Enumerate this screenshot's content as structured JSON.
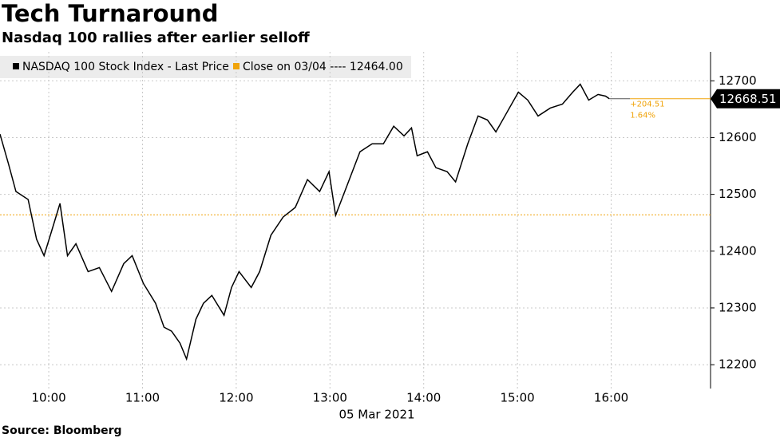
{
  "chart_data": {
    "type": "line",
    "title": "Tech Turnaround",
    "subtitle": "Nasdaq 100 rallies after earlier selloff",
    "source": "Source: Bloomberg",
    "x_label": "05 Mar 2021",
    "series": [
      {
        "name": "NASDAQ 100 Stock Index - Last Price",
        "color": "#000000",
        "x": [
          9.48,
          9.57,
          9.65,
          9.78,
          9.87,
          9.95,
          10.03,
          10.12,
          10.2,
          10.29,
          10.42,
          10.54,
          10.67,
          10.8,
          10.89,
          11.01,
          11.14,
          11.23,
          11.31,
          11.4,
          11.47,
          11.57,
          11.65,
          11.74,
          11.87,
          11.95,
          12.03,
          12.16,
          12.25,
          12.37,
          12.5,
          12.63,
          12.76,
          12.89,
          12.99,
          13.06,
          13.19,
          13.32,
          13.45,
          13.57,
          13.68,
          13.79,
          13.87,
          13.93,
          14.04,
          14.13,
          14.25,
          14.34,
          14.47,
          14.58,
          14.68,
          14.77,
          14.89,
          15.01,
          15.11,
          15.22,
          15.35,
          15.48,
          15.59,
          15.67,
          15.76,
          15.86,
          15.94,
          15.98
        ],
        "values": [
          12606,
          12554,
          12505,
          12491,
          12421,
          12392,
          12435,
          12484,
          12392,
          12413,
          12364,
          12371,
          12329,
          12378,
          12392,
          12343,
          12308,
          12266,
          12259,
          12238,
          12210,
          12280,
          12308,
          12322,
          12287,
          12336,
          12364,
          12336,
          12364,
          12428,
          12460,
          12477,
          12526,
          12505,
          12540,
          12463,
          12519,
          12575,
          12589,
          12589,
          12620,
          12603,
          12617,
          12568,
          12575,
          12547,
          12540,
          12522,
          12589,
          12638,
          12631,
          12610,
          12645,
          12680,
          12666,
          12638,
          12652,
          12659,
          12680,
          12694,
          12666,
          12676,
          12673,
          12668.51
        ]
      }
    ],
    "reference_line": {
      "name": "Close on 03/04 ---- 12464.00",
      "value": 12464,
      "color": "#f0a30a"
    },
    "annotations": [
      "+204.51",
      "1.64%"
    ],
    "xlim": [
      9.48,
      17.06
    ],
    "ylim": [
      12158,
      12751
    ],
    "xticks": [
      {
        "value": 10,
        "label": "10:00"
      },
      {
        "value": 11,
        "label": "11:00"
      },
      {
        "value": 12,
        "label": "12:00"
      },
      {
        "value": 13,
        "label": "13:00"
      },
      {
        "value": 14,
        "label": "14:00"
      },
      {
        "value": 15,
        "label": "15:00"
      },
      {
        "value": 16,
        "label": "16:00"
      }
    ],
    "yticks": [
      12200,
      12300,
      12400,
      12500,
      12600,
      12700
    ],
    "grid": true
  }
}
